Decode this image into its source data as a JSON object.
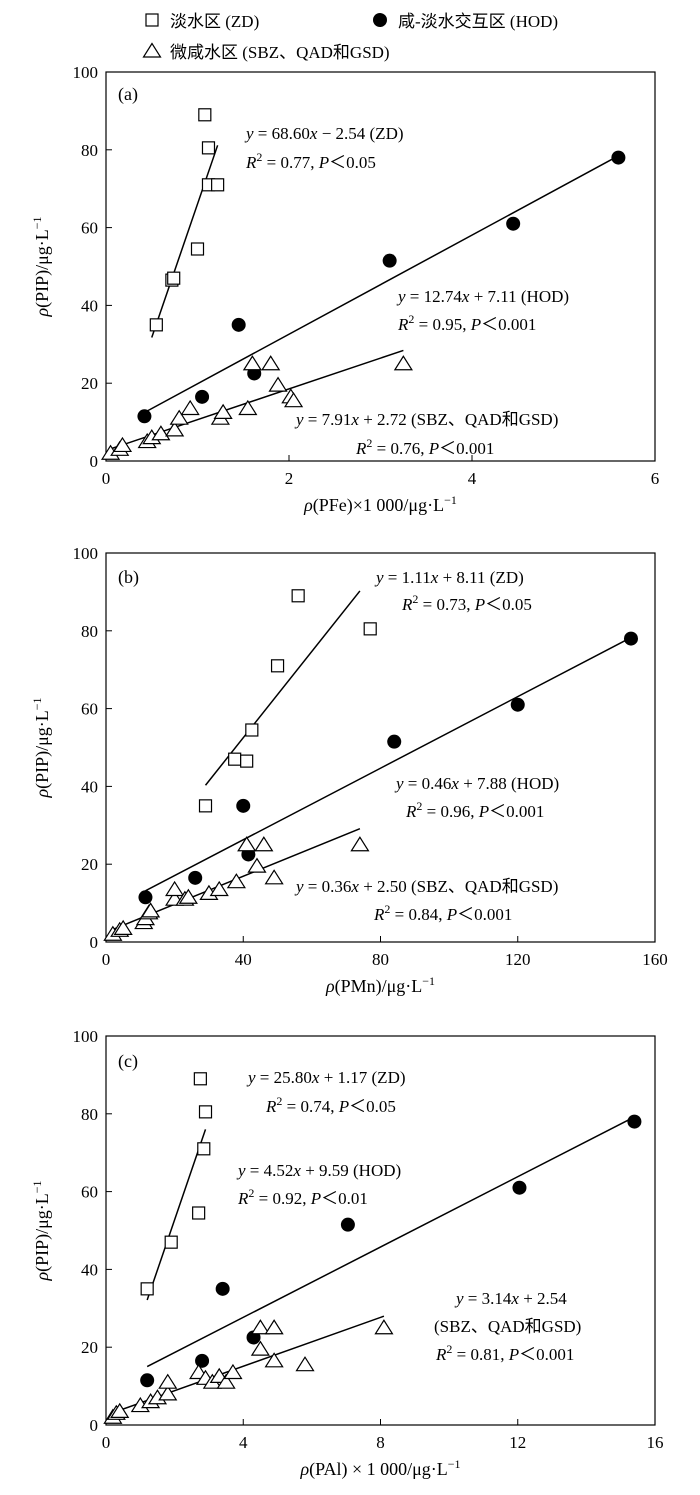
{
  "legend": [
    {
      "label": "淡水区 (ZD)",
      "marker": "square"
    },
    {
      "label": "咸-淡水交互区 (HOD)",
      "marker": "circle"
    },
    {
      "label": "微咸水区 (SBZ、QAD和GSD)",
      "marker": "triangle"
    }
  ],
  "chart_data": [
    {
      "type": "scatter",
      "panel": "(a)",
      "xlabel_parts": [
        "ρ",
        "(PFe)×1 000/μg·L",
        "−1"
      ],
      "ylabel_parts": [
        "ρ",
        "(PIP)/μg·L",
        "−1"
      ],
      "xlim": [
        0,
        6
      ],
      "ylim": [
        0,
        100
      ],
      "xticks": [
        0,
        2,
        4,
        6
      ],
      "yticks": [
        0,
        20,
        40,
        60,
        80,
        100
      ],
      "xtick_labels": [
        "0",
        "2",
        "4",
        "6"
      ],
      "ytick_labels": [
        "0",
        "20",
        "40",
        "60",
        "80",
        "100"
      ],
      "series": [
        {
          "marker": "square",
          "points": [
            [
              0.55,
              35
            ],
            [
              0.72,
              46.5
            ],
            [
              0.74,
              47
            ],
            [
              1.0,
              54.5
            ],
            [
              1.12,
              71
            ],
            [
              1.08,
              89
            ],
            [
              1.12,
              80.5
            ],
            [
              1.22,
              71
            ]
          ],
          "fit": {
            "x": [
              0.5,
              1.22
            ]
          },
          "eq": [
            "y",
            " = 68.60",
            "x",
            " − 2.54 (ZD)"
          ],
          "r2": [
            "R",
            "2",
            " = 0.77, ",
            "P",
            "＜0.05"
          ]
        },
        {
          "marker": "circle",
          "points": [
            [
              0.42,
              11.5
            ],
            [
              1.05,
              16.5
            ],
            [
              1.45,
              35
            ],
            [
              1.62,
              22.5
            ],
            [
              3.1,
              51.5
            ],
            [
              4.45,
              61
            ],
            [
              5.6,
              78
            ]
          ],
          "fit": {
            "x": [
              0.42,
              5.6
            ]
          },
          "eq": [
            "y",
            " = 12.74",
            "x",
            " + 7.11 (HOD)"
          ],
          "r2": [
            "R",
            "2",
            " = 0.95, ",
            "P",
            "＜0.001"
          ]
        },
        {
          "marker": "triangle",
          "points": [
            [
              0.05,
              2
            ],
            [
              0.15,
              3
            ],
            [
              0.18,
              4
            ],
            [
              0.45,
              5
            ],
            [
              0.5,
              6
            ],
            [
              0.6,
              7
            ],
            [
              0.75,
              8
            ],
            [
              0.8,
              11
            ],
            [
              0.92,
              13.5
            ],
            [
              1.25,
              11
            ],
            [
              1.28,
              12.5
            ],
            [
              1.55,
              13.5
            ],
            [
              1.6,
              25
            ],
            [
              1.8,
              25
            ],
            [
              1.88,
              19.5
            ],
            [
              2.02,
              16.5
            ],
            [
              2.05,
              15.5
            ],
            [
              3.25,
              25
            ]
          ],
          "fit": {
            "x": [
              0.05,
              3.25
            ]
          },
          "eq": [
            "y",
            " = 7.91",
            "x",
            " + 2.72 (SBZ、QAD和GSD)"
          ],
          "r2": [
            "R",
            "2",
            " = 0.76, ",
            "P",
            "＜0.001"
          ]
        }
      ]
    },
    {
      "type": "scatter",
      "panel": "(b)",
      "xlabel_parts": [
        "ρ",
        "(PMn)/μg·L",
        "−1"
      ],
      "ylabel_parts": [
        "ρ",
        "(PIP)/μg·L",
        "−1"
      ],
      "xlim": [
        0,
        160
      ],
      "ylim": [
        0,
        100
      ],
      "xticks": [
        0,
        40,
        80,
        120,
        160
      ],
      "yticks": [
        0,
        20,
        40,
        60,
        80,
        100
      ],
      "xtick_labels": [
        "0",
        "40",
        "80",
        "120",
        "160"
      ],
      "ytick_labels": [
        "0",
        "20",
        "40",
        "60",
        "80",
        "100"
      ],
      "series": [
        {
          "marker": "square",
          "points": [
            [
              29,
              35
            ],
            [
              37.5,
              47
            ],
            [
              41,
              46.5
            ],
            [
              42.5,
              54.5
            ],
            [
              50,
              71
            ],
            [
              56,
              89
            ],
            [
              77,
              80.5
            ]
          ],
          "fit": {
            "x": [
              29,
              74
            ]
          },
          "eq": [
            "y",
            " = 1.11",
            "x",
            " + 8.11 (ZD)"
          ],
          "r2": [
            "R",
            "2",
            " = 0.73, ",
            "P",
            "＜0.05"
          ]
        },
        {
          "marker": "circle",
          "points": [
            [
              11.5,
              11.5
            ],
            [
              26,
              16.5
            ],
            [
              40,
              35
            ],
            [
              41.5,
              22.5
            ],
            [
              84,
              51.5
            ],
            [
              120,
              61
            ],
            [
              153,
              78
            ]
          ],
          "fit": {
            "x": [
              11.5,
              153
            ]
          },
          "eq": [
            "y",
            " = 0.46",
            "x",
            " + 7.88 (HOD)"
          ],
          "r2": [
            "R",
            "2",
            " = 0.96, ",
            "P",
            "＜0.001"
          ]
        },
        {
          "marker": "triangle",
          "points": [
            [
              2,
              2
            ],
            [
              4,
              3
            ],
            [
              5,
              3.5
            ],
            [
              11,
              5
            ],
            [
              11.5,
              6
            ],
            [
              12.5,
              7.5
            ],
            [
              13,
              8
            ],
            [
              20,
              11
            ],
            [
              20,
              13.5
            ],
            [
              23,
              11
            ],
            [
              24,
              11.5
            ],
            [
              30,
              12.5
            ],
            [
              33,
              13.5
            ],
            [
              38,
              15.5
            ],
            [
              41,
              25
            ],
            [
              44,
              19.5
            ],
            [
              46,
              25
            ],
            [
              49,
              16.5
            ],
            [
              74,
              25
            ]
          ],
          "fit": {
            "x": [
              2,
              74
            ]
          },
          "eq": [
            "y",
            " = 0.36",
            "x",
            " + 2.50 (SBZ、QAD和GSD)"
          ],
          "r2": [
            "R",
            "2",
            " = 0.84, ",
            "P",
            "＜0.001"
          ]
        }
      ]
    },
    {
      "type": "scatter",
      "panel": "(c)",
      "xlabel_parts": [
        "ρ",
        "(PAl) × 1 000/μg·L",
        "−1"
      ],
      "ylabel_parts": [
        "ρ",
        "(PIP)/μg·L",
        "−1"
      ],
      "xlim": [
        0,
        16
      ],
      "ylim": [
        0,
        100
      ],
      "xticks": [
        0,
        4,
        8,
        12,
        16
      ],
      "yticks": [
        0,
        20,
        40,
        60,
        80,
        100
      ],
      "xtick_labels": [
        "0",
        "4",
        "8",
        "12",
        "16"
      ],
      "ytick_labels": [
        "0",
        "20",
        "40",
        "60",
        "80",
        "100"
      ],
      "series": [
        {
          "marker": "square",
          "points": [
            [
              1.2,
              35
            ],
            [
              1.9,
              47
            ],
            [
              2.7,
              54.5
            ],
            [
              2.85,
              71
            ],
            [
              2.9,
              80.5
            ],
            [
              2.75,
              89
            ]
          ],
          "fit": {
            "x": [
              1.2,
              2.9
            ]
          },
          "eq": [
            "y",
            " = 25.80",
            "x",
            " + 1.17 (ZD)"
          ],
          "r2": [
            "R",
            "2",
            " = 0.74, ",
            "P",
            "＜0.05"
          ]
        },
        {
          "marker": "circle",
          "points": [
            [
              1.2,
              11.5
            ],
            [
              2.8,
              16.5
            ],
            [
              3.4,
              35
            ],
            [
              4.3,
              22.5
            ],
            [
              7.05,
              51.5
            ],
            [
              12.05,
              61
            ],
            [
              15.4,
              78
            ]
          ],
          "fit": {
            "x": [
              1.2,
              15.4
            ]
          },
          "eq": [
            "y",
            " = 4.52",
            "x",
            " + 9.59 (HOD)"
          ],
          "r2": [
            "R",
            "2",
            " = 0.92, ",
            "P",
            "＜0.01"
          ]
        },
        {
          "marker": "triangle",
          "points": [
            [
              0.2,
              2
            ],
            [
              0.3,
              3
            ],
            [
              0.4,
              3.5
            ],
            [
              1.0,
              5
            ],
            [
              1.3,
              6
            ],
            [
              1.5,
              7
            ],
            [
              1.8,
              8
            ],
            [
              1.8,
              11
            ],
            [
              2.7,
              13.5
            ],
            [
              2.9,
              12
            ],
            [
              3.1,
              11
            ],
            [
              3.3,
              12.5
            ],
            [
              3.5,
              11
            ],
            [
              3.7,
              13.5
            ],
            [
              4.5,
              19.5
            ],
            [
              4.5,
              25
            ],
            [
              4.9,
              25
            ],
            [
              4.9,
              16.5
            ],
            [
              5.8,
              15.5
            ],
            [
              8.1,
              25
            ]
          ],
          "fit": {
            "x": [
              0.2,
              8.1
            ]
          },
          "eq": [
            "y",
            " = 3.14",
            "x",
            " + 2.54"
          ],
          "eq_extra": "(SBZ、QAD和GSD)",
          "r2": [
            "R",
            "2",
            " = 0.81, ",
            "P",
            "＜0.001"
          ]
        }
      ]
    }
  ]
}
